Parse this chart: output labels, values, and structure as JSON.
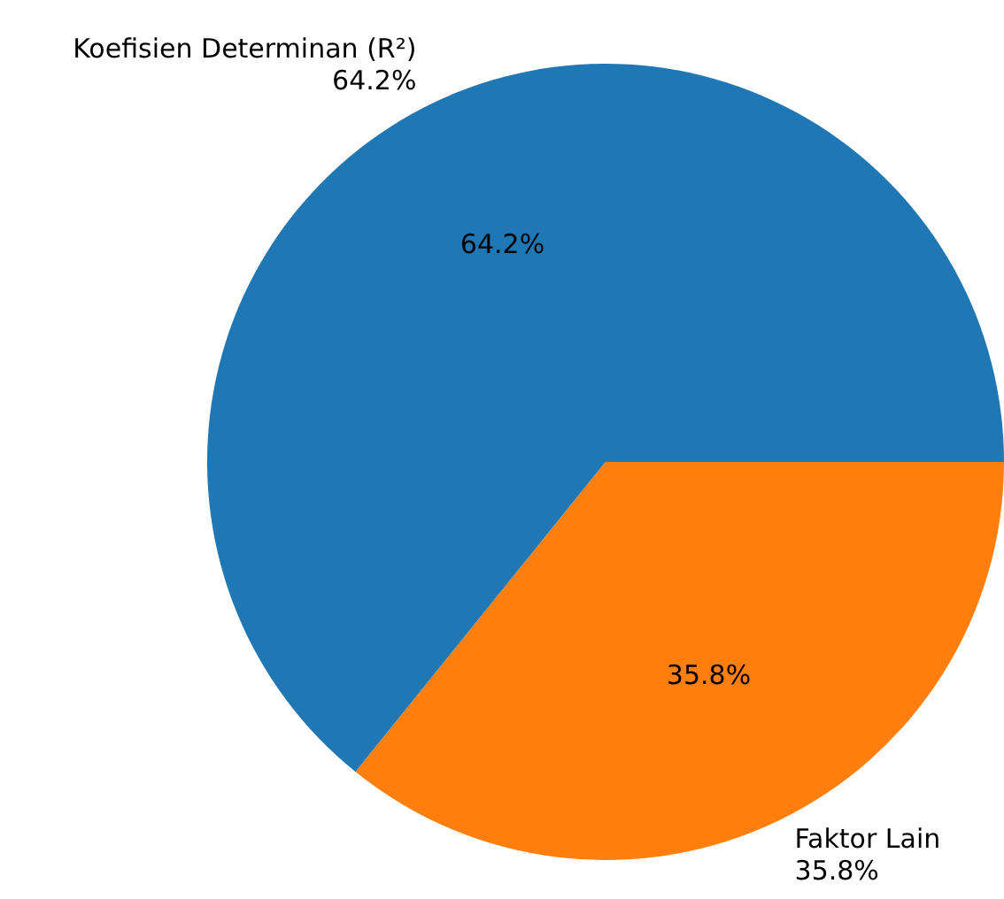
{
  "chart_data": {
    "type": "pie",
    "categories": [
      "Koefisien Determinan (R²)",
      "Faktor Lain"
    ],
    "values": [
      64.2,
      35.8
    ],
    "colors": [
      "#1f77b4",
      "#ff7f0e"
    ],
    "value_labels": [
      "64.2%",
      "35.8%"
    ]
  }
}
